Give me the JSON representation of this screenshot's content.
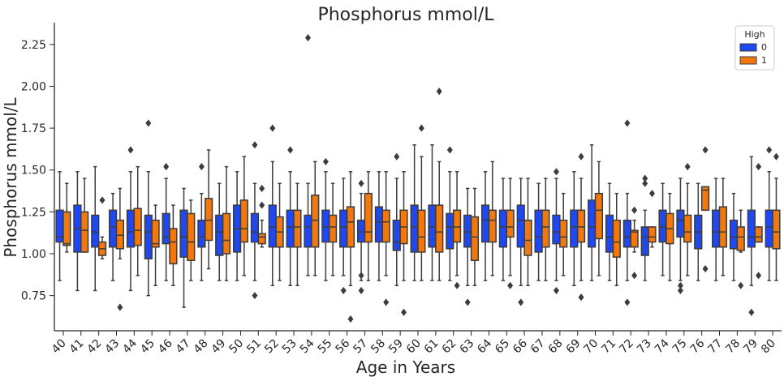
{
  "chart_data": {
    "type": "box",
    "title": "Phosphorus mmol/L",
    "xlabel": "Age in Years",
    "ylabel": "Phosphorus mmol/L",
    "ylim": [
      0.54,
      2.38
    ],
    "yticks": [
      0.75,
      1.0,
      1.25,
      1.5,
      1.75,
      2.0,
      2.25
    ],
    "ytick_labels": [
      "0.75",
      "1.00",
      "1.25",
      "1.50",
      "1.75",
      "2.00",
      "2.25"
    ],
    "grid": false,
    "legend": {
      "title": "High",
      "placement": "top-right"
    },
    "categories": [
      "40",
      "41",
      "42",
      "43",
      "44",
      "45",
      "46",
      "47",
      "48",
      "49",
      "50",
      "51",
      "52",
      "53",
      "54",
      "55",
      "56",
      "57",
      "58",
      "59",
      "60",
      "61",
      "62",
      "63",
      "64",
      "65",
      "66",
      "67",
      "68",
      "69",
      "70",
      "71",
      "72",
      "73",
      "74",
      "75",
      "76",
      "77",
      "78",
      "79",
      "80"
    ],
    "series": [
      {
        "name": "0",
        "color": "#1f48f0",
        "boxes": [
          {
            "whislo": 0.84,
            "q1": 1.07,
            "med": 1.1,
            "q3": 1.26,
            "whishi": 1.49,
            "fliers": []
          },
          {
            "whislo": 0.78,
            "q1": 1.01,
            "med": 1.15,
            "q3": 1.29,
            "whishi": 1.49,
            "fliers": []
          },
          {
            "whislo": 0.78,
            "q1": 1.04,
            "med": 1.13,
            "q3": 1.23,
            "whishi": 1.52,
            "fliers": []
          },
          {
            "whislo": 0.84,
            "q1": 1.04,
            "med": 1.16,
            "q3": 1.26,
            "whishi": 1.36,
            "fliers": []
          },
          {
            "whislo": 0.78,
            "q1": 1.04,
            "med": 1.13,
            "q3": 1.26,
            "whishi": 1.49,
            "fliers": [
              1.62
            ]
          },
          {
            "whislo": 0.75,
            "q1": 0.97,
            "med": 1.13,
            "q3": 1.23,
            "whishi": 1.49,
            "fliers": [
              1.78
            ]
          },
          {
            "whislo": 0.84,
            "q1": 1.06,
            "med": 1.1,
            "q3": 1.24,
            "whishi": 1.45,
            "fliers": [
              1.52
            ]
          },
          {
            "whislo": 0.68,
            "q1": 0.98,
            "med": 1.1,
            "q3": 1.26,
            "whishi": 1.39,
            "fliers": []
          },
          {
            "whislo": 0.84,
            "q1": 1.04,
            "med": 1.1,
            "q3": 1.2,
            "whishi": 1.36,
            "fliers": [
              1.52
            ]
          },
          {
            "whislo": 0.84,
            "q1": 0.99,
            "med": 1.13,
            "q3": 1.23,
            "whishi": 1.42,
            "fliers": []
          },
          {
            "whislo": 0.84,
            "q1": 1.01,
            "med": 1.15,
            "q3": 1.29,
            "whishi": 1.49,
            "fliers": []
          },
          {
            "whislo": 0.84,
            "q1": 1.07,
            "med": 1.13,
            "q3": 1.24,
            "whishi": 1.42,
            "fliers": [
              1.65,
              0.75
            ]
          },
          {
            "whislo": 0.81,
            "q1": 1.04,
            "med": 1.16,
            "q3": 1.29,
            "whishi": 1.55,
            "fliers": [
              1.75
            ]
          },
          {
            "whislo": 0.81,
            "q1": 1.04,
            "med": 1.16,
            "q3": 1.26,
            "whishi": 1.49,
            "fliers": [
              1.62
            ]
          },
          {
            "whislo": 0.87,
            "q1": 1.04,
            "med": 1.16,
            "q3": 1.23,
            "whishi": 1.42,
            "fliers": [
              2.29
            ]
          },
          {
            "whislo": 0.84,
            "q1": 1.07,
            "med": 1.16,
            "q3": 1.26,
            "whishi": 1.49,
            "fliers": [
              1.55
            ]
          },
          {
            "whislo": 0.87,
            "q1": 1.04,
            "med": 1.16,
            "q3": 1.26,
            "whishi": 1.45,
            "fliers": [
              0.78
            ]
          },
          {
            "whislo": 0.84,
            "q1": 1.07,
            "med": 1.13,
            "q3": 1.2,
            "whishi": 1.36,
            "fliers": [
              1.42,
              0.87,
              0.78
            ]
          },
          {
            "whislo": 0.84,
            "q1": 1.07,
            "med": 1.19,
            "q3": 1.28,
            "whishi": 1.49,
            "fliers": []
          },
          {
            "whislo": 0.81,
            "q1": 1.02,
            "med": 1.07,
            "q3": 1.2,
            "whishi": 1.45,
            "fliers": [
              1.58
            ]
          },
          {
            "whislo": 0.84,
            "q1": 1.01,
            "med": 1.16,
            "q3": 1.29,
            "whishi": 1.65,
            "fliers": []
          },
          {
            "whislo": 0.84,
            "q1": 1.04,
            "med": 1.16,
            "q3": 1.29,
            "whishi": 1.65,
            "fliers": []
          },
          {
            "whislo": 0.84,
            "q1": 1.03,
            "med": 1.16,
            "q3": 1.24,
            "whishi": 1.49,
            "fliers": [
              1.62
            ]
          },
          {
            "whislo": 0.81,
            "q1": 1.04,
            "med": 1.13,
            "q3": 1.23,
            "whishi": 1.39,
            "fliers": [
              0.71
            ]
          },
          {
            "whislo": 0.84,
            "q1": 1.07,
            "med": 1.2,
            "q3": 1.29,
            "whishi": 1.49,
            "fliers": []
          },
          {
            "whislo": 0.84,
            "q1": 1.04,
            "med": 1.16,
            "q3": 1.26,
            "whishi": 1.45,
            "fliers": []
          },
          {
            "whislo": 0.81,
            "q1": 1.04,
            "med": 1.2,
            "q3": 1.29,
            "whishi": 1.45,
            "fliers": [
              0.71
            ]
          },
          {
            "whislo": 0.84,
            "q1": 1.01,
            "med": 1.1,
            "q3": 1.26,
            "whishi": 1.42,
            "fliers": []
          },
          {
            "whislo": 0.84,
            "q1": 1.06,
            "med": 1.13,
            "q3": 1.23,
            "whishi": 1.45,
            "fliers": [
              1.49,
              0.78
            ]
          },
          {
            "whislo": 0.81,
            "q1": 1.04,
            "med": 1.16,
            "q3": 1.26,
            "whishi": 1.49,
            "fliers": []
          },
          {
            "whislo": 0.84,
            "q1": 1.04,
            "med": 1.16,
            "q3": 1.32,
            "whishi": 1.65,
            "fliers": []
          },
          {
            "whislo": 0.84,
            "q1": 1.01,
            "med": 1.1,
            "q3": 1.23,
            "whishi": 1.42,
            "fliers": []
          },
          {
            "whislo": 0.84,
            "q1": 1.04,
            "med": 1.1,
            "q3": 1.2,
            "whishi": 1.36,
            "fliers": [
              1.78,
              0.71
            ]
          },
          {
            "whislo": 0.84,
            "q1": 0.99,
            "med": 1.1,
            "q3": 1.16,
            "whishi": 1.26,
            "fliers": [
              1.45,
              1.42
            ]
          },
          {
            "whislo": 0.87,
            "q1": 1.07,
            "med": 1.16,
            "q3": 1.26,
            "whishi": 1.42,
            "fliers": []
          },
          {
            "whislo": 0.84,
            "q1": 1.1,
            "med": 1.2,
            "q3": 1.26,
            "whishi": 1.45,
            "fliers": [
              0.81,
              0.78
            ]
          },
          {
            "whislo": 0.84,
            "q1": 1.03,
            "med": 1.13,
            "q3": 1.23,
            "whishi": 1.42,
            "fliers": []
          },
          {
            "whislo": 0.84,
            "q1": 1.04,
            "med": 1.13,
            "q3": 1.26,
            "whishi": 1.45,
            "fliers": []
          },
          {
            "whislo": 0.84,
            "q1": 1.03,
            "med": 1.1,
            "q3": 1.2,
            "whishi": 1.36,
            "fliers": []
          },
          {
            "whislo": 0.81,
            "q1": 1.04,
            "med": 1.1,
            "q3": 1.26,
            "whishi": 1.58,
            "fliers": [
              0.65
            ]
          },
          {
            "whislo": 0.84,
            "q1": 1.04,
            "med": 1.16,
            "q3": 1.26,
            "whishi": 1.49,
            "fliers": [
              1.62
            ]
          }
        ]
      },
      {
        "name": "1",
        "color": "#f0780f",
        "boxes": [
          {
            "whislo": 1.01,
            "q1": 1.05,
            "med": 1.06,
            "q3": 1.25,
            "whishi": 1.42,
            "fliers": []
          },
          {
            "whislo": 1.01,
            "q1": 1.01,
            "med": 1.14,
            "q3": 1.25,
            "whishi": 1.45,
            "fliers": []
          },
          {
            "whislo": 0.97,
            "q1": 0.99,
            "med": 1.03,
            "q3": 1.07,
            "whishi": 1.1,
            "fliers": [
              1.32
            ]
          },
          {
            "whislo": 0.97,
            "q1": 1.03,
            "med": 1.11,
            "q3": 1.2,
            "whishi": 1.39,
            "fliers": [
              0.68
            ]
          },
          {
            "whislo": 0.87,
            "q1": 1.05,
            "med": 1.14,
            "q3": 1.27,
            "whishi": 1.52,
            "fliers": []
          },
          {
            "whislo": 0.81,
            "q1": 1.04,
            "med": 1.06,
            "q3": 1.2,
            "whishi": 1.29,
            "fliers": []
          },
          {
            "whislo": 0.81,
            "q1": 0.94,
            "med": 1.07,
            "q3": 1.15,
            "whishi": 1.29,
            "fliers": []
          },
          {
            "whislo": 0.84,
            "q1": 0.96,
            "med": 1.07,
            "q3": 1.24,
            "whishi": 1.32,
            "fliers": []
          },
          {
            "whislo": 0.91,
            "q1": 1.08,
            "med": 1.2,
            "q3": 1.33,
            "whishi": 1.62,
            "fliers": []
          },
          {
            "whislo": 0.84,
            "q1": 1.0,
            "med": 1.08,
            "q3": 1.24,
            "whishi": 1.52,
            "fliers": []
          },
          {
            "whislo": 0.87,
            "q1": 1.07,
            "med": 1.15,
            "q3": 1.32,
            "whishi": 1.58,
            "fliers": []
          },
          {
            "whislo": 1.04,
            "q1": 1.06,
            "med": 1.1,
            "q3": 1.12,
            "whishi": 1.2,
            "fliers": [
              1.39,
              1.29
            ]
          },
          {
            "whislo": 0.84,
            "q1": 1.04,
            "med": 1.13,
            "q3": 1.22,
            "whishi": 1.42,
            "fliers": []
          },
          {
            "whislo": 0.81,
            "q1": 1.04,
            "med": 1.16,
            "q3": 1.26,
            "whishi": 1.42,
            "fliers": []
          },
          {
            "whislo": 0.87,
            "q1": 1.04,
            "med": 1.2,
            "q3": 1.35,
            "whishi": 1.55,
            "fliers": []
          },
          {
            "whislo": 0.87,
            "q1": 1.07,
            "med": 1.16,
            "q3": 1.23,
            "whishi": 1.42,
            "fliers": []
          },
          {
            "whislo": 0.81,
            "q1": 1.04,
            "med": 1.19,
            "q3": 1.28,
            "whishi": 1.49,
            "fliers": [
              0.61
            ]
          },
          {
            "whislo": 0.84,
            "q1": 1.07,
            "med": 1.13,
            "q3": 1.36,
            "whishi": 1.49,
            "fliers": []
          },
          {
            "whislo": 0.87,
            "q1": 1.07,
            "med": 1.19,
            "q3": 1.26,
            "whishi": 1.49,
            "fliers": [
              0.71
            ]
          },
          {
            "whislo": 0.84,
            "q1": 1.06,
            "med": 1.16,
            "q3": 1.26,
            "whishi": 1.49,
            "fliers": [
              0.65
            ]
          },
          {
            "whislo": 0.84,
            "q1": 1.01,
            "med": 1.1,
            "q3": 1.26,
            "whishi": 1.58,
            "fliers": [
              1.75
            ]
          },
          {
            "whislo": 0.84,
            "q1": 1.01,
            "med": 1.13,
            "q3": 1.29,
            "whishi": 1.55,
            "fliers": [
              1.97
            ]
          },
          {
            "whislo": 0.87,
            "q1": 1.07,
            "med": 1.16,
            "q3": 1.26,
            "whishi": 1.49,
            "fliers": [
              0.81
            ]
          },
          {
            "whislo": 0.81,
            "q1": 0.96,
            "med": 1.1,
            "q3": 1.22,
            "whishi": 1.39,
            "fliers": []
          },
          {
            "whislo": 0.87,
            "q1": 1.07,
            "med": 1.2,
            "q3": 1.26,
            "whishi": 1.55,
            "fliers": []
          },
          {
            "whislo": 0.87,
            "q1": 1.1,
            "med": 1.16,
            "q3": 1.26,
            "whishi": 1.45,
            "fliers": [
              0.81
            ]
          },
          {
            "whislo": 0.81,
            "q1": 0.99,
            "med": 1.08,
            "q3": 1.2,
            "whishi": 1.45,
            "fliers": []
          },
          {
            "whislo": 0.84,
            "q1": 1.04,
            "med": 1.16,
            "q3": 1.26,
            "whishi": 1.45,
            "fliers": []
          },
          {
            "whislo": 0.87,
            "q1": 1.04,
            "med": 1.1,
            "q3": 1.2,
            "whishi": 1.36,
            "fliers": []
          },
          {
            "whislo": 0.84,
            "q1": 1.07,
            "med": 1.16,
            "q3": 1.26,
            "whishi": 1.45,
            "fliers": [
              1.58,
              0.74
            ]
          },
          {
            "whislo": 0.87,
            "q1": 1.09,
            "med": 1.26,
            "q3": 1.36,
            "whishi": 1.55,
            "fliers": []
          },
          {
            "whislo": 0.81,
            "q1": 0.98,
            "med": 1.07,
            "q3": 1.2,
            "whishi": 1.36,
            "fliers": []
          },
          {
            "whislo": 1.01,
            "q1": 1.04,
            "med": 1.13,
            "q3": 1.14,
            "whishi": 1.2,
            "fliers": [
              1.26,
              0.87
            ]
          },
          {
            "whislo": 1.04,
            "q1": 1.07,
            "med": 1.1,
            "q3": 1.16,
            "whishi": 1.16,
            "fliers": [
              1.36
            ]
          },
          {
            "whislo": 0.84,
            "q1": 1.06,
            "med": 1.15,
            "q3": 1.24,
            "whishi": 1.36,
            "fliers": []
          },
          {
            "whislo": 0.87,
            "q1": 1.07,
            "med": 1.13,
            "q3": 1.23,
            "whishi": 1.42,
            "fliers": [
              1.52
            ]
          },
          {
            "whislo": 1.26,
            "q1": 1.26,
            "med": 1.38,
            "q3": 1.4,
            "whishi": 1.4,
            "fliers": [
              1.62,
              0.91
            ]
          },
          {
            "whislo": 0.87,
            "q1": 1.04,
            "med": 1.13,
            "q3": 1.28,
            "whishi": 1.45,
            "fliers": []
          },
          {
            "whislo": 1.01,
            "q1": 1.02,
            "med": 1.1,
            "q3": 1.16,
            "whishi": 1.26,
            "fliers": [
              0.81
            ]
          },
          {
            "whislo": 1.07,
            "q1": 1.07,
            "med": 1.1,
            "q3": 1.16,
            "whishi": 1.16,
            "fliers": [
              1.52,
              0.87
            ]
          },
          {
            "whislo": 0.84,
            "q1": 1.03,
            "med": 1.13,
            "q3": 1.26,
            "whishi": 1.45,
            "fliers": [
              1.58
            ]
          }
        ]
      }
    ]
  }
}
